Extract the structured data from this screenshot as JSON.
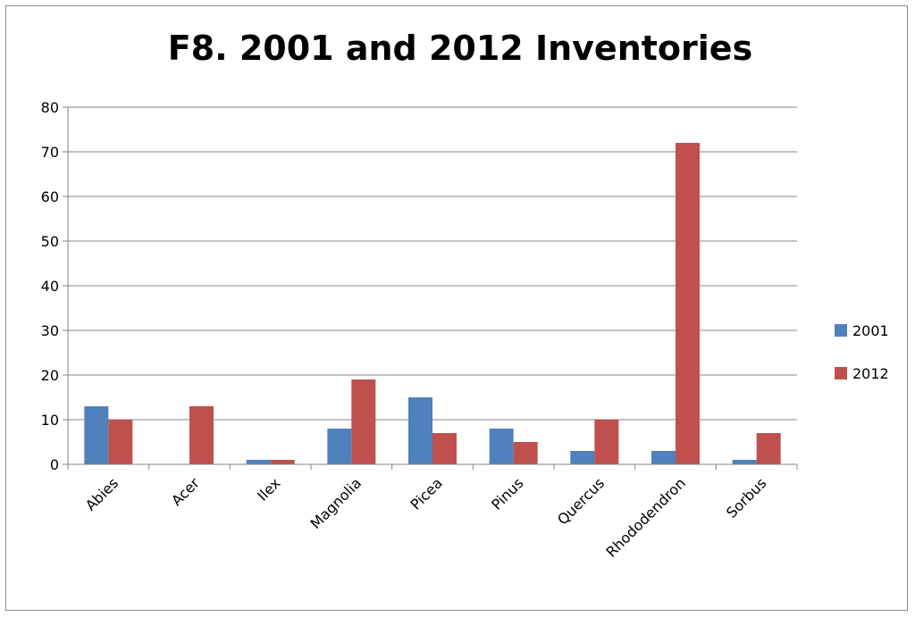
{
  "chart_data": {
    "type": "bar",
    "title": "F8. 2001 and 2012 Inventories",
    "xlabel": "",
    "ylabel": "",
    "categories": [
      "Abies",
      "Acer",
      "Ilex",
      "Magnolia",
      "Picea",
      "Pinus",
      "Quercus",
      "Rhododendron",
      "Sorbus"
    ],
    "series": [
      {
        "name": "2001",
        "color": "#4f81bd",
        "values": [
          13,
          0,
          1,
          8,
          15,
          8,
          3,
          3,
          1
        ]
      },
      {
        "name": "2012",
        "color": "#c0504d",
        "values": [
          10,
          13,
          1,
          19,
          7,
          5,
          10,
          72,
          7
        ]
      }
    ],
    "ylim": [
      0,
      80
    ],
    "yticks": [
      0,
      10,
      20,
      30,
      40,
      50,
      60,
      70,
      80
    ],
    "grid": true,
    "legend_position": "right"
  }
}
